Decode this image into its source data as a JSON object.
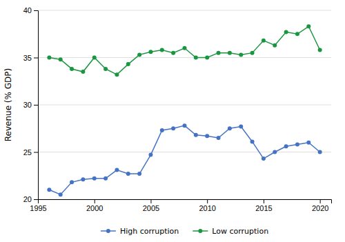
{
  "chart_data": {
    "type": "line",
    "ylabel": "Revenue (% GDP)",
    "x": [
      1996,
      1997,
      1998,
      1999,
      2000,
      2001,
      2002,
      2003,
      2004,
      2005,
      2006,
      2007,
      2008,
      2009,
      2010,
      2011,
      2012,
      2013,
      2014,
      2015,
      2016,
      2017,
      2018,
      2019,
      2020
    ],
    "series": [
      {
        "name": "High corruption",
        "color": "#4472C4",
        "marker": "circle",
        "values": [
          21.0,
          20.5,
          21.8,
          22.1,
          22.2,
          22.2,
          23.1,
          22.7,
          22.7,
          24.7,
          27.3,
          27.5,
          27.8,
          26.8,
          26.7,
          26.5,
          27.5,
          27.7,
          26.1,
          24.3,
          25.0,
          25.6,
          25.8,
          26.0,
          25.0
        ]
      },
      {
        "name": "Low corruption",
        "color": "#1a9641",
        "marker": "circle",
        "values": [
          35.0,
          34.8,
          33.8,
          33.5,
          35.0,
          33.8,
          33.2,
          34.3,
          35.3,
          35.6,
          35.8,
          35.5,
          36.0,
          35.0,
          35.0,
          35.5,
          35.5,
          35.3,
          35.5,
          36.8,
          36.3,
          37.7,
          37.5,
          38.3,
          35.8
        ]
      }
    ],
    "xlim": [
      1995,
      2021
    ],
    "xticks": [
      1995,
      2000,
      2005,
      2010,
      2015,
      2020
    ],
    "ylim": [
      20,
      40
    ],
    "yticks": [
      20,
      25,
      30,
      35,
      40
    ],
    "grid": "y",
    "legend": "bottom"
  }
}
